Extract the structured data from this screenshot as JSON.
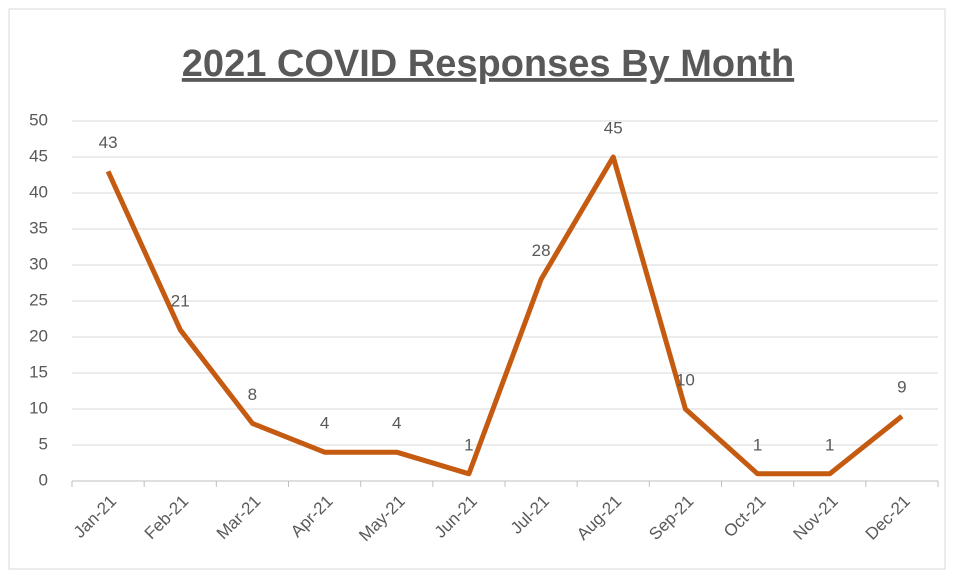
{
  "chart_data": {
    "type": "line",
    "title": "2021 COVID Responses By Month",
    "categories": [
      "Jan-21",
      "Feb-21",
      "Mar-21",
      "Apr-21",
      "May-21",
      "Jun-21",
      "Jul-21",
      "Aug-21",
      "Sep-21",
      "Oct-21",
      "Nov-21",
      "Dec-21"
    ],
    "values": [
      43,
      21,
      8,
      4,
      4,
      1,
      28,
      45,
      10,
      1,
      1,
      9
    ],
    "color": "#c55a11",
    "ylim": [
      0,
      50
    ],
    "yticks": [
      0,
      5,
      10,
      15,
      20,
      25,
      30,
      35,
      40,
      45,
      50
    ],
    "grid": true
  }
}
